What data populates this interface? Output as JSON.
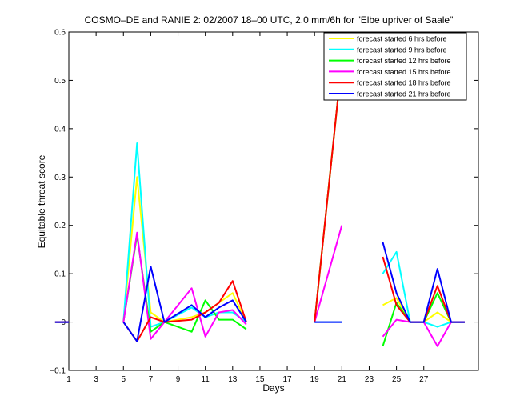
{
  "chart_data": {
    "type": "line",
    "title": "COSMO–DE and RANIE 2: 02/2007 18–00 UTC, 2.0 mm/6h for \"Elbe upriver of Saale\"",
    "xlabel": "Days",
    "ylabel": "Equitable threat score",
    "xlim": [
      1,
      31
    ],
    "ylim": [
      -0.1,
      0.6
    ],
    "xticks": [
      1,
      3,
      5,
      7,
      9,
      11,
      13,
      15,
      17,
      19,
      21,
      23,
      25,
      27
    ],
    "yticks": [
      -0.1,
      0,
      0.1,
      0.2,
      0.3,
      0.4,
      0.5,
      0.6
    ],
    "ytick_labels": [
      "−0.1",
      "0",
      "0.1",
      "0.2",
      "0.3",
      "0.4",
      "0.5",
      "0.6"
    ],
    "legend_position": "top-right",
    "grid": false,
    "series": [
      {
        "name": "forecast started 6 hrs before",
        "color": "#ffff00",
        "points": [
          [
            0,
            0
          ],
          [
            1,
            0
          ],
          [
            5,
            0
          ],
          [
            6,
            0.3
          ],
          [
            7,
            0.02
          ],
          [
            8,
            0
          ],
          [
            10,
            0.01
          ],
          [
            11,
            0.02
          ],
          [
            12,
            0.04
          ],
          [
            13,
            0.06
          ],
          [
            14,
            0
          ],
          [
            19,
            0
          ],
          [
            21,
            0.54
          ],
          [
            24,
            0.035
          ],
          [
            25,
            0.05
          ],
          [
            26,
            0
          ],
          [
            27,
            0
          ],
          [
            28,
            0.02
          ],
          [
            29,
            0
          ],
          [
            30,
            0
          ]
        ]
      },
      {
        "name": "forecast started 9 hrs before",
        "color": "#00ffff",
        "points": [
          [
            0,
            0
          ],
          [
            1,
            0
          ],
          [
            5,
            0
          ],
          [
            6,
            0.37
          ],
          [
            7,
            -0.01
          ],
          [
            8,
            0
          ],
          [
            10,
            0.03
          ],
          [
            11,
            0.01
          ],
          [
            12,
            0.02
          ],
          [
            13,
            0.02
          ],
          [
            14,
            0
          ],
          [
            19,
            0
          ],
          [
            21,
            0
          ],
          [
            24,
            0.1
          ],
          [
            25,
            0.145
          ],
          [
            26,
            0
          ],
          [
            27,
            0
          ],
          [
            28,
            -0.01
          ],
          [
            29,
            0
          ],
          [
            30,
            0
          ]
        ]
      },
      {
        "name": "forecast started 12 hrs before",
        "color": "#00ff00",
        "points": [
          [
            0,
            0
          ],
          [
            1,
            0
          ],
          [
            5,
            0
          ],
          [
            6,
            0.18
          ],
          [
            7,
            -0.02
          ],
          [
            8,
            0
          ],
          [
            10,
            -0.02
          ],
          [
            11,
            0.045
          ],
          [
            12,
            0.005
          ],
          [
            13,
            0.005
          ],
          [
            14,
            -0.015
          ],
          [
            19,
            0
          ],
          [
            21,
            0.54
          ],
          [
            24,
            -0.05
          ],
          [
            25,
            0.04
          ],
          [
            26,
            0
          ],
          [
            27,
            0
          ],
          [
            28,
            0.06
          ],
          [
            29,
            0
          ],
          [
            30,
            0
          ]
        ]
      },
      {
        "name": "forecast started 15 hrs before",
        "color": "#ff00ff",
        "points": [
          [
            0,
            0
          ],
          [
            1,
            0
          ],
          [
            5,
            0
          ],
          [
            6,
            0.185
          ],
          [
            7,
            -0.035
          ],
          [
            8,
            0
          ],
          [
            10,
            0.07
          ],
          [
            11,
            -0.03
          ],
          [
            12,
            0.02
          ],
          [
            13,
            0.025
          ],
          [
            14,
            -0.005
          ],
          [
            19,
            0
          ],
          [
            21,
            0.2
          ],
          [
            24,
            -0.03
          ],
          [
            25,
            0.005
          ],
          [
            26,
            0
          ],
          [
            27,
            0
          ],
          [
            28,
            -0.05
          ],
          [
            29,
            0
          ],
          [
            30,
            0
          ]
        ]
      },
      {
        "name": "forecast started 18 hrs before",
        "color": "#ff0000",
        "points": [
          [
            0,
            0
          ],
          [
            1,
            0
          ],
          [
            5,
            0
          ],
          [
            6,
            -0.04
          ],
          [
            7,
            0.01
          ],
          [
            8,
            0
          ],
          [
            10,
            0.005
          ],
          [
            11,
            0.02
          ],
          [
            12,
            0.04
          ],
          [
            13,
            0.085
          ],
          [
            14,
            0
          ],
          [
            19,
            0
          ],
          [
            21,
            0.54
          ],
          [
            24,
            0.135
          ],
          [
            25,
            0.035
          ],
          [
            26,
            0
          ],
          [
            27,
            0
          ],
          [
            28,
            0.075
          ],
          [
            29,
            0
          ],
          [
            30,
            0
          ]
        ]
      },
      {
        "name": "forecast started 21 hrs before",
        "color": "#0000ff",
        "points": [
          [
            0,
            0
          ],
          [
            1,
            0
          ],
          [
            5,
            0
          ],
          [
            6,
            -0.04
          ],
          [
            7,
            0.115
          ],
          [
            8,
            0
          ],
          [
            10,
            0.035
          ],
          [
            11,
            0.01
          ],
          [
            12,
            0.03
          ],
          [
            13,
            0.045
          ],
          [
            14,
            0
          ],
          [
            19,
            0
          ],
          [
            21,
            0
          ],
          [
            24,
            0.165
          ],
          [
            25,
            0.06
          ],
          [
            26,
            0
          ],
          [
            27,
            0
          ],
          [
            28,
            0.11
          ],
          [
            29,
            0
          ],
          [
            30,
            0
          ]
        ]
      }
    ]
  }
}
